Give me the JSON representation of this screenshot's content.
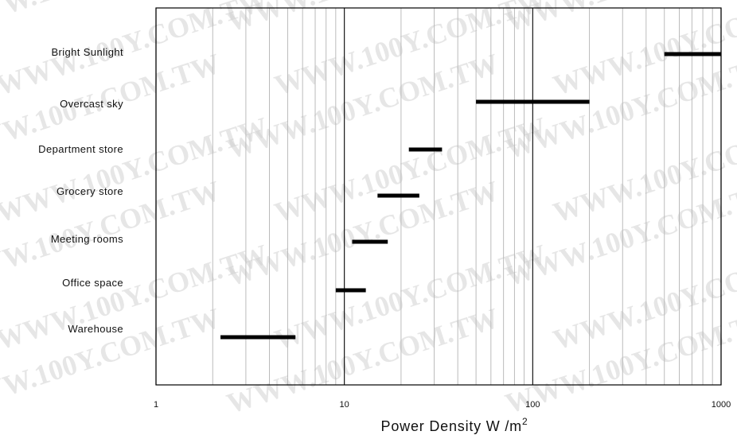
{
  "chart_data": {
    "type": "range-bar",
    "scale": "log",
    "xlim": [
      1,
      1000
    ],
    "xticks": [
      1,
      10,
      100,
      1000
    ],
    "xtick_labels": [
      "1",
      "10",
      "100",
      "1000"
    ],
    "xlabel_main": "Power Density W /m",
    "xlabel_sup": "2",
    "grid": true,
    "bar_color": "#000000",
    "categories": [
      {
        "label": "Bright Sunlight",
        "low": 500,
        "high": 1000
      },
      {
        "label": "Overcast sky",
        "low": 50,
        "high": 200
      },
      {
        "label": "Department store",
        "low": 22,
        "high": 33
      },
      {
        "label": "Grocery store",
        "low": 15,
        "high": 25
      },
      {
        "label": "Meeting rooms",
        "low": 11,
        "high": 17
      },
      {
        "label": "Office space",
        "low": 9,
        "high": 13
      },
      {
        "label": "Warehouse",
        "low": 2.2,
        "high": 5.5
      }
    ]
  },
  "watermark": "WWW.100Y.COM.TW"
}
